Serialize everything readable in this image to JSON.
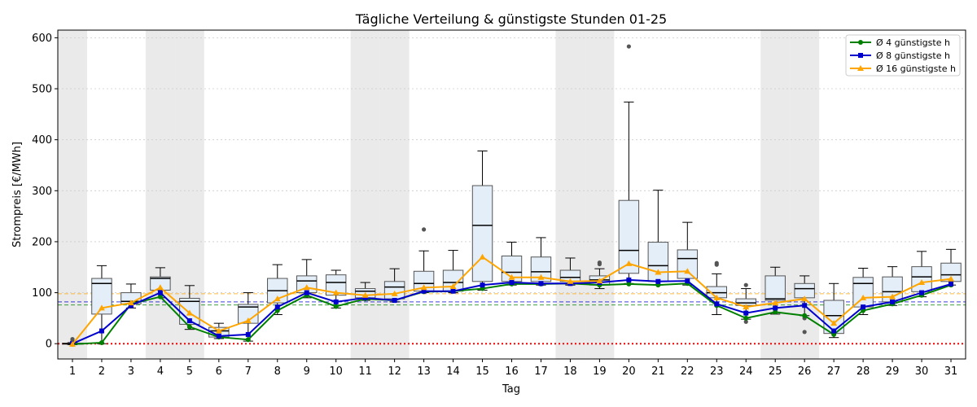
{
  "chart_data": {
    "type": "box",
    "title": "Tägliche Verteilung & günstigste Stunden 01-25",
    "xlabel": "Tag",
    "ylabel": "Strompreis [€/MWh]",
    "ylim": [
      -30,
      615
    ],
    "yticks": [
      0,
      100,
      200,
      300,
      400,
      500,
      600
    ],
    "grid": true,
    "legend_position": "top-right",
    "weekend_days": [
      1,
      4,
      5,
      11,
      12,
      18,
      19,
      25,
      26
    ],
    "days": [
      1,
      2,
      3,
      4,
      5,
      6,
      7,
      8,
      9,
      10,
      11,
      12,
      13,
      14,
      15,
      16,
      17,
      18,
      19,
      20,
      21,
      22,
      23,
      24,
      25,
      26,
      27,
      28,
      29,
      30,
      31
    ],
    "boxes": [
      {
        "day": 1,
        "wl": -2,
        "q1": -1,
        "med": 0,
        "q3": 1,
        "wh": 2,
        "out": [
          9,
          5
        ]
      },
      {
        "day": 2,
        "wl": 0,
        "q1": 58,
        "med": 118,
        "q3": 128,
        "wh": 153,
        "out": []
      },
      {
        "day": 3,
        "wl": 70,
        "q1": 78,
        "med": 83,
        "q3": 100,
        "wh": 117,
        "out": []
      },
      {
        "day": 4,
        "wl": 90,
        "q1": 105,
        "med": 128,
        "q3": 131,
        "wh": 149,
        "out": []
      },
      {
        "day": 5,
        "wl": 28,
        "q1": 38,
        "med": 83,
        "q3": 89,
        "wh": 114,
        "out": []
      },
      {
        "day": 6,
        "wl": 10,
        "q1": 13,
        "med": 25,
        "q3": 32,
        "wh": 40,
        "out": []
      },
      {
        "day": 7,
        "wl": 5,
        "q1": 40,
        "med": 72,
        "q3": 77,
        "wh": 100,
        "out": []
      },
      {
        "day": 8,
        "wl": 57,
        "q1": 80,
        "med": 104,
        "q3": 128,
        "wh": 155,
        "out": []
      },
      {
        "day": 9,
        "wl": 90,
        "q1": 100,
        "med": 123,
        "q3": 133,
        "wh": 165,
        "out": []
      },
      {
        "day": 10,
        "wl": 70,
        "q1": 95,
        "med": 120,
        "q3": 135,
        "wh": 144,
        "out": []
      },
      {
        "day": 11,
        "wl": 85,
        "q1": 90,
        "med": 103,
        "q3": 108,
        "wh": 120,
        "out": []
      },
      {
        "day": 12,
        "wl": 82,
        "q1": 88,
        "med": 111,
        "q3": 122,
        "wh": 147,
        "out": []
      },
      {
        "day": 13,
        "wl": 100,
        "q1": 103,
        "med": 118,
        "q3": 142,
        "wh": 182,
        "out": [
          224
        ]
      },
      {
        "day": 14,
        "wl": 100,
        "q1": 103,
        "med": 120,
        "q3": 144,
        "wh": 183,
        "out": []
      },
      {
        "day": 15,
        "wl": 105,
        "q1": 122,
        "med": 232,
        "q3": 310,
        "wh": 378,
        "out": []
      },
      {
        "day": 16,
        "wl": 115,
        "q1": 122,
        "med": 140,
        "q3": 172,
        "wh": 199,
        "out": []
      },
      {
        "day": 17,
        "wl": 115,
        "q1": 122,
        "med": 141,
        "q3": 170,
        "wh": 208,
        "out": []
      },
      {
        "day": 18,
        "wl": 115,
        "q1": 122,
        "med": 130,
        "q3": 144,
        "wh": 168,
        "out": []
      },
      {
        "day": 19,
        "wl": 108,
        "q1": 115,
        "med": 125,
        "q3": 133,
        "wh": 147,
        "out": [
          159,
          156
        ]
      },
      {
        "day": 20,
        "wl": 118,
        "q1": 138,
        "med": 183,
        "q3": 281,
        "wh": 474,
        "out": [
          583
        ]
      },
      {
        "day": 21,
        "wl": 115,
        "q1": 122,
        "med": 153,
        "q3": 199,
        "wh": 301,
        "out": []
      },
      {
        "day": 22,
        "wl": 115,
        "q1": 128,
        "med": 167,
        "q3": 184,
        "wh": 238,
        "out": []
      },
      {
        "day": 23,
        "wl": 57,
        "q1": 90,
        "med": 100,
        "q3": 112,
        "wh": 137,
        "out": [
          158,
          155
        ]
      },
      {
        "day": 24,
        "wl": 48,
        "q1": 75,
        "med": 80,
        "q3": 88,
        "wh": 108,
        "out": [
          115,
          43
        ]
      },
      {
        "day": 25,
        "wl": 58,
        "q1": 85,
        "med": 88,
        "q3": 133,
        "wh": 150,
        "out": []
      },
      {
        "day": 26,
        "wl": 55,
        "q1": 90,
        "med": 108,
        "q3": 118,
        "wh": 133,
        "out": [
          50,
          23
        ]
      },
      {
        "day": 27,
        "wl": 12,
        "q1": 20,
        "med": 55,
        "q3": 85,
        "wh": 118,
        "out": []
      },
      {
        "day": 28,
        "wl": 57,
        "q1": 72,
        "med": 118,
        "q3": 130,
        "wh": 148,
        "out": []
      },
      {
        "day": 29,
        "wl": 75,
        "q1": 82,
        "med": 102,
        "q3": 131,
        "wh": 151,
        "out": []
      },
      {
        "day": 30,
        "wl": 92,
        "q1": 102,
        "med": 131,
        "q3": 151,
        "wh": 181,
        "out": []
      },
      {
        "day": 31,
        "wl": 115,
        "q1": 122,
        "med": 135,
        "q3": 158,
        "wh": 185,
        "out": []
      }
    ],
    "series": [
      {
        "name": "Ø 4 günstigste h",
        "color": "#008000",
        "marker": "circle",
        "values": [
          -1,
          2,
          78,
          92,
          33,
          13,
          8,
          65,
          95,
          73,
          88,
          85,
          102,
          103,
          108,
          117,
          117,
          118,
          115,
          117,
          115,
          118,
          75,
          50,
          62,
          55,
          18,
          65,
          78,
          95,
          115
        ]
      },
      {
        "name": "Ø 8 günstigste h",
        "color": "#0000cd",
        "marker": "square",
        "values": [
          0,
          25,
          75,
          100,
          45,
          15,
          18,
          72,
          100,
          82,
          90,
          85,
          103,
          103,
          115,
          120,
          118,
          118,
          120,
          125,
          122,
          123,
          78,
          60,
          70,
          75,
          25,
          72,
          82,
          100,
          117
        ]
      },
      {
        "name": "Ø 16 günstigste h",
        "color": "#ffa500",
        "marker": "triangle",
        "values": [
          -1,
          70,
          80,
          110,
          60,
          25,
          45,
          88,
          110,
          100,
          95,
          98,
          110,
          112,
          170,
          130,
          130,
          122,
          123,
          157,
          140,
          142,
          90,
          72,
          80,
          88,
          40,
          90,
          92,
          120,
          127
        ]
      }
    ],
    "reference_lines": [
      {
        "value": 98,
        "color": "#ffa500",
        "style": "dashed"
      },
      {
        "value": 82,
        "color": "#0000cd",
        "style": "dashed"
      },
      {
        "value": 76,
        "color": "#008000",
        "style": "dashed"
      },
      {
        "value": 0,
        "color": "#ff0000",
        "style": "dotted"
      }
    ]
  }
}
